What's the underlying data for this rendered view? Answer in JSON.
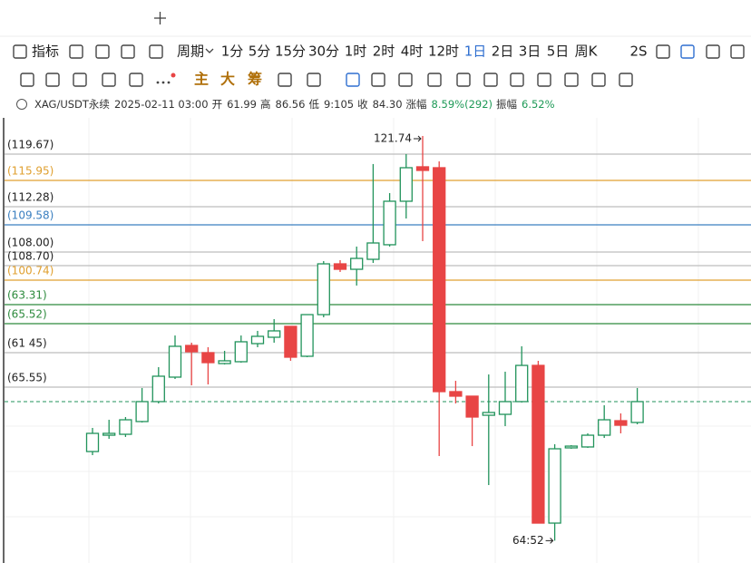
{
  "toolbar": {
    "row1": [
      {
        "text": "指标"
      },
      {
        "text": "周期"
      },
      {
        "text": "1分"
      },
      {
        "text": "5分"
      },
      {
        "text": "15分"
      },
      {
        "text": "30分"
      },
      {
        "text": "1时"
      },
      {
        "text": "2时"
      },
      {
        "text": "4时"
      },
      {
        "text": "12时"
      },
      {
        "text": "1日",
        "active": true
      },
      {
        "text": "2日"
      },
      {
        "text": "3日"
      },
      {
        "text": "5日"
      },
      {
        "text": "周K"
      },
      {
        "text": "2S"
      }
    ],
    "row2": [
      {
        "text": "主"
      },
      {
        "text": "大"
      },
      {
        "text": "筹"
      }
    ]
  },
  "info": [
    {
      "text": "XAG/USDT永续"
    },
    {
      "text": "2025-02-11 03:00"
    },
    {
      "text": "开"
    },
    {
      "text": "61.99"
    },
    {
      "text": "高"
    },
    {
      "text": "86.56"
    },
    {
      "text": "低"
    },
    {
      "text": "9:105"
    },
    {
      "text": "收"
    },
    {
      "text": "84.30"
    },
    {
      "text": "涨幅"
    },
    {
      "text": "8.59%(292)",
      "color": "#1e9a57"
    },
    {
      "text": "振幅"
    },
    {
      "text": "6.52%",
      "color": "#1e9a57"
    }
  ],
  "chart_data": {
    "type": "candlestick",
    "open": [
      77.12,
      79.43,
      79.56,
      81.36,
      84.18,
      87.64,
      92.12,
      91.1,
      89.56,
      89.82,
      92.38,
      93.28,
      94.82,
      90.59,
      96.48,
      103.66,
      102.89,
      104.3,
      106.36,
      112.51,
      117.38,
      117.25,
      85.59,
      84.95,
      82.25,
      82.38,
      84.18,
      89.3,
      67.0,
      77.64,
      77.77,
      79.43,
      81.48,
      81.23
    ],
    "high": [
      80.46,
      81.61,
      82.0,
      86.1,
      89.05,
      93.53,
      92.51,
      91.87,
      91.36,
      93.53,
      94.18,
      95.84,
      94.82,
      96.48,
      104.05,
      104.18,
      106.1,
      117.77,
      113.66,
      119.18,
      121.74,
      118.15,
      87.12,
      84.95,
      88.02,
      88.41,
      92.0,
      89.95,
      78.15,
      78.02,
      79.69,
      83.66,
      82.51,
      86.1
    ],
    "low": [
      76.61,
      78.92,
      79.18,
      81.23,
      83.92,
      87.38,
      86.48,
      86.61,
      89.43,
      89.69,
      91.87,
      92.51,
      89.95,
      90.46,
      96.1,
      102.51,
      100.59,
      103.79,
      106.1,
      110.07,
      106.87,
      76.48,
      83.92,
      77.89,
      72.38,
      80.71,
      84.05,
      67.0,
      64.52,
      77.51,
      77.64,
      79.05,
      79.69,
      80.97
    ],
    "close": [
      79.69,
      79.69,
      81.61,
      84.18,
      87.77,
      92.0,
      91.23,
      89.69,
      89.95,
      92.64,
      93.41,
      94.18,
      90.46,
      96.48,
      103.66,
      102.89,
      104.43,
      106.61,
      112.51,
      117.25,
      116.87,
      85.59,
      84.95,
      82.0,
      82.64,
      84.18,
      89.3,
      67.0,
      77.51,
      77.89,
      79.43,
      81.61,
      80.84,
      84.18
    ],
    "up_color": "#21935b",
    "down_color": "#e84545",
    "ylim": [
      61.36,
      124.3
    ],
    "levels": [
      {
        "label": "(119.67)",
        "color": "#bdbdbd"
      },
      {
        "label": "(115.95)",
        "color": "#e0a030"
      },
      {
        "label": "(112.28)",
        "color": "#bdbdbd"
      },
      {
        "label": "(109.58)",
        "color": "#3a7fc0"
      },
      {
        "label": "(108.00)",
        "color": "#bdbdbd"
      },
      {
        "label": "(108.70)",
        "color": "#bdbdbd"
      },
      {
        "label": "(100.74)",
        "color": "#e0a030"
      },
      {
        "label": "(63.31)",
        "color": "#2e8b3e"
      },
      {
        "label": "(65.52)",
        "color": "#2e8b3e"
      },
      {
        "label": "(61 45)",
        "color": "#bdbdbd"
      },
      {
        "label": "(65.55)",
        "color": "#bdbdbd"
      }
    ],
    "annotations": [
      {
        "text": "121.74"
      },
      {
        "text": "64:52"
      }
    ]
  }
}
